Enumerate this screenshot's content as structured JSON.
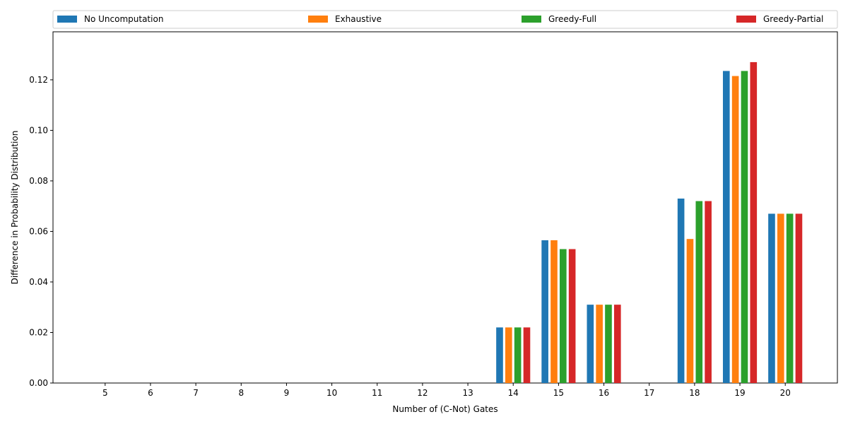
{
  "chart_data": {
    "type": "bar",
    "categories": [
      "5",
      "6",
      "7",
      "8",
      "9",
      "10",
      "11",
      "12",
      "13",
      "14",
      "15",
      "16",
      "17",
      "18",
      "19",
      "20"
    ],
    "series": [
      {
        "name": "No Uncomputation",
        "color": "#1f77b4",
        "values": [
          0,
          0,
          0,
          0,
          0,
          0,
          0,
          0,
          0,
          0.022,
          0.0565,
          0.031,
          0,
          0.073,
          0.1235,
          0.067
        ]
      },
      {
        "name": "Exhaustive",
        "color": "#ff7f0e",
        "values": [
          0,
          0,
          0,
          0,
          0,
          0,
          0,
          0,
          0,
          0.022,
          0.0565,
          0.031,
          0,
          0.057,
          0.1215,
          0.067
        ]
      },
      {
        "name": "Greedy-Full",
        "color": "#2ca02c",
        "values": [
          0,
          0,
          0,
          0,
          0,
          0,
          0,
          0,
          0,
          0.022,
          0.053,
          0.031,
          0,
          0.072,
          0.1235,
          0.067
        ]
      },
      {
        "name": "Greedy-Partial",
        "color": "#d62728",
        "values": [
          0,
          0,
          0,
          0,
          0,
          0,
          0,
          0,
          0,
          0.022,
          0.053,
          0.031,
          0,
          0.072,
          0.127,
          0.067
        ]
      }
    ],
    "xlabel": "Number of (C-Not) Gates",
    "ylabel": "Difference in Probability Distribution",
    "ylim": [
      0,
      0.139
    ],
    "yticks": [
      "0.00",
      "0.02",
      "0.04",
      "0.06",
      "0.08",
      "0.10",
      "0.12"
    ],
    "legend_position": "top"
  }
}
